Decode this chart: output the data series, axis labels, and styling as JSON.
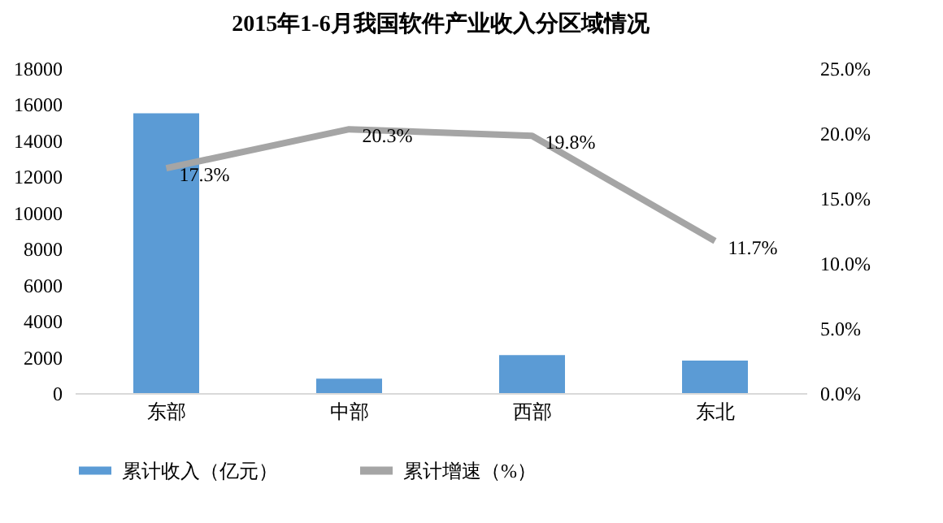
{
  "chart_data": {
    "type": "bar",
    "title": "2015年1-6月我国软件产业收入分区域情况",
    "categories": [
      "东部",
      "中部",
      "西部",
      "东北"
    ],
    "series": [
      {
        "name": "累计收入（亿元）",
        "type": "bar",
        "color": "#5b9bd5",
        "values": [
          15500,
          800,
          2100,
          1800
        ]
      },
      {
        "name": "累计增速（%）",
        "type": "line",
        "axis": "y2",
        "color": "#a5a5a5",
        "values": [
          17.3,
          20.3,
          19.8,
          11.7
        ],
        "value_labels": [
          "17.3%",
          "20.3%",
          "19.8%",
          "11.7%"
        ]
      }
    ],
    "ylim": [
      0,
      18000
    ],
    "yticks": [
      0,
      2000,
      4000,
      6000,
      8000,
      10000,
      12000,
      14000,
      16000,
      18000
    ],
    "y2lim": [
      0,
      25
    ],
    "y2ticks": [
      {
        "value": 0,
        "label": "0.0%"
      },
      {
        "value": 5,
        "label": "5.0%"
      },
      {
        "value": 10,
        "label": "10.0%"
      },
      {
        "value": 15,
        "label": "15.0%"
      },
      {
        "value": 20,
        "label": "20.0%"
      },
      {
        "value": 25,
        "label": "25.0%"
      }
    ],
    "grid": false,
    "legend": "bottom",
    "marker": "none",
    "line_style": "solid"
  }
}
